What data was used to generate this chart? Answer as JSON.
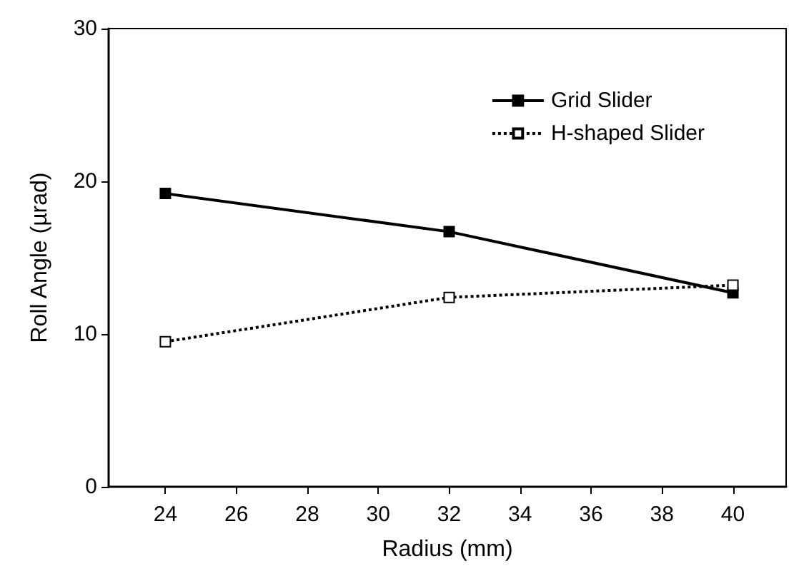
{
  "chart_data": {
    "type": "line",
    "xlabel": "Radius (mm)",
    "ylabel": "Roll Angle (µrad)",
    "x": [
      24,
      32,
      40
    ],
    "series": [
      {
        "name": "Grid Slider",
        "color": "#000000",
        "values": [
          19.2,
          16.7,
          12.7
        ],
        "line_style": "solid"
      },
      {
        "name": "H-shaped Slider",
        "color": "#000000",
        "values": [
          9.5,
          12.4,
          13.2
        ],
        "line_style": "dotted"
      }
    ],
    "xlim": [
      22.4,
      41.5
    ],
    "xticks": [
      24,
      26,
      28,
      30,
      32,
      34,
      36,
      38,
      40
    ],
    "ylim": [
      0,
      30
    ],
    "yticks": [
      0,
      10,
      20,
      30
    ],
    "grid": false,
    "legend": "top right",
    "marker": "square"
  }
}
